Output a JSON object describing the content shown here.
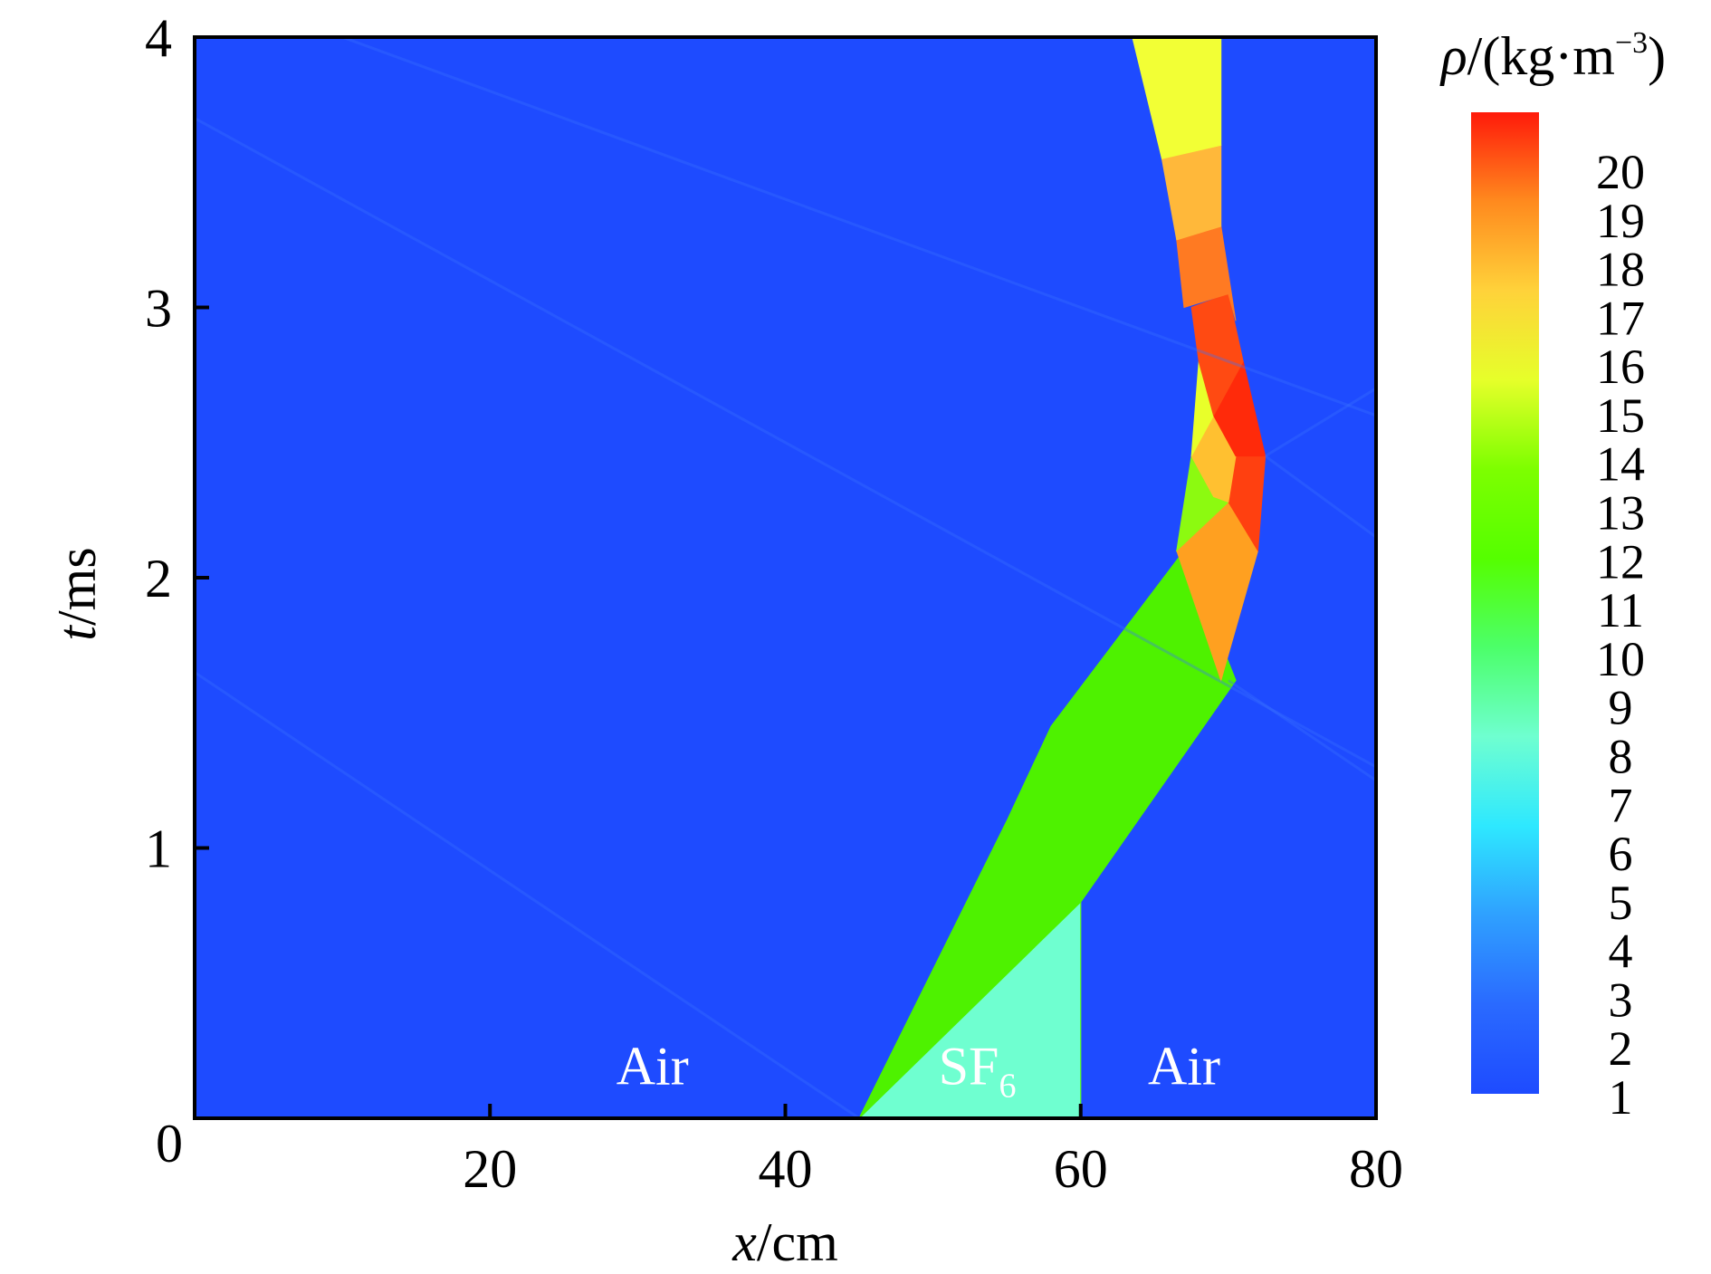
{
  "chart_data": {
    "type": "heatmap",
    "title": "",
    "xlabel": "x/cm",
    "ylabel": "t/ms",
    "xlim": [
      0,
      80
    ],
    "ylim": [
      0,
      4
    ],
    "x_ticks": [
      "0",
      "20",
      "40",
      "60",
      "80"
    ],
    "y_ticks": [
      "1",
      "2",
      "3",
      "4"
    ],
    "colorbar": {
      "label": "ρ/(kg·m⁻³)",
      "range": [
        1,
        20
      ],
      "ticks": [
        "1",
        "2",
        "3",
        "4",
        "5",
        "6",
        "7",
        "8",
        "9",
        "10",
        "11",
        "12",
        "13",
        "14",
        "15",
        "16",
        "17",
        "18",
        "19",
        "20"
      ],
      "colormap": [
        "#1e4bff",
        "#2a6aff",
        "#2fa0ff",
        "#2ee8ff",
        "#6fffd0",
        "#4cff6a",
        "#55ff00",
        "#7dff00",
        "#e6ff2a",
        "#ffd23a",
        "#ff8a1e",
        "#ff1a0a"
      ]
    },
    "region_labels": [
      {
        "text": "Air",
        "x": 31,
        "t": 0.2
      },
      {
        "text": "SF",
        "sub": "6",
        "x": 53,
        "t": 0.2
      },
      {
        "text": "Air",
        "x": 67,
        "t": 0.2
      }
    ],
    "regions": [
      {
        "name": "ambient-air",
        "density": 1.2,
        "color": "#1e4bff",
        "polygon": [
          [
            0,
            0
          ],
          [
            80,
            0
          ],
          [
            80,
            4
          ],
          [
            0,
            4
          ]
        ]
      },
      {
        "name": "sf6-initial",
        "density": 6.0,
        "color": "#6fffd0",
        "polygon": [
          [
            45,
            0
          ],
          [
            60,
            0
          ],
          [
            60,
            0.8
          ]
        ]
      },
      {
        "name": "compressed-sf6-a",
        "density": 12.5,
        "color": "#55f500",
        "polygon": [
          [
            45,
            0
          ],
          [
            60,
            0.8
          ],
          [
            60,
            0
          ],
          [
            60,
            0.8
          ],
          [
            70.5,
            1.62
          ],
          [
            67,
            2.1
          ],
          [
            58,
            1.45
          ],
          [
            55,
            1.1
          ]
        ]
      },
      {
        "name": "compressed-sf6-b",
        "density": 11.8,
        "color": "#4ef200",
        "polygon": [
          [
            45,
            0
          ],
          [
            55,
            1.1
          ],
          [
            58,
            1.45
          ],
          [
            67,
            2.1
          ],
          [
            70.5,
            1.62
          ],
          [
            60,
            0.8
          ]
        ]
      },
      {
        "name": "shocked-layer-1",
        "density": 17.5,
        "color": "#ffa020",
        "polygon": [
          [
            66.5,
            2.1
          ],
          [
            70,
            2.28
          ],
          [
            72,
            2.1
          ],
          [
            69.5,
            1.62
          ]
        ]
      },
      {
        "name": "shocked-layer-2",
        "density": 14.5,
        "color": "#8cfa10",
        "polygon": [
          [
            66.5,
            2.1
          ],
          [
            67.5,
            2.45
          ],
          [
            69,
            2.3
          ],
          [
            70,
            2.28
          ]
        ]
      },
      {
        "name": "shocked-layer-3",
        "density": 19.5,
        "color": "#ff4010",
        "polygon": [
          [
            70,
            2.28
          ],
          [
            72,
            2.1
          ],
          [
            72.5,
            2.45
          ],
          [
            70.5,
            2.45
          ]
        ]
      },
      {
        "name": "shocked-layer-4",
        "density": 17.0,
        "color": "#ffc030",
        "polygon": [
          [
            67.5,
            2.45
          ],
          [
            69,
            2.3
          ],
          [
            70,
            2.28
          ],
          [
            70.5,
            2.45
          ],
          [
            69,
            2.6
          ]
        ]
      },
      {
        "name": "shocked-layer-5",
        "density": 19.8,
        "color": "#ff2a0a",
        "polygon": [
          [
            69,
            2.6
          ],
          [
            70.5,
            2.45
          ],
          [
            72.5,
            2.45
          ],
          [
            71,
            2.8
          ]
        ]
      },
      {
        "name": "shocked-layer-6",
        "density": 16.2,
        "color": "#e8ff2a",
        "polygon": [
          [
            67.5,
            2.45
          ],
          [
            69,
            2.6
          ],
          [
            68,
            2.8
          ]
        ]
      },
      {
        "name": "shocked-layer-7",
        "density": 19.3,
        "color": "#ff4a12",
        "polygon": [
          [
            68,
            2.8
          ],
          [
            69,
            2.6
          ],
          [
            71,
            2.8
          ],
          [
            70,
            3.05
          ],
          [
            67.5,
            3.0
          ]
        ]
      },
      {
        "name": "shocked-layer-8",
        "density": 18.3,
        "color": "#ff7a22",
        "polygon": [
          [
            67,
            3.0
          ],
          [
            70,
            3.05
          ],
          [
            70.5,
            2.95
          ],
          [
            69.5,
            3.3
          ],
          [
            66.5,
            3.25
          ]
        ]
      },
      {
        "name": "shocked-layer-9",
        "density": 17.2,
        "color": "#ffb83a",
        "polygon": [
          [
            66.5,
            3.25
          ],
          [
            69.5,
            3.3
          ],
          [
            69.5,
            3.6
          ],
          [
            65.5,
            3.55
          ]
        ]
      },
      {
        "name": "shocked-layer-10",
        "density": 16.5,
        "color": "#f2ff35",
        "polygon": [
          [
            65.5,
            3.55
          ],
          [
            69.5,
            3.6
          ],
          [
            69.5,
            4
          ],
          [
            63.5,
            4
          ]
        ]
      }
    ]
  }
}
